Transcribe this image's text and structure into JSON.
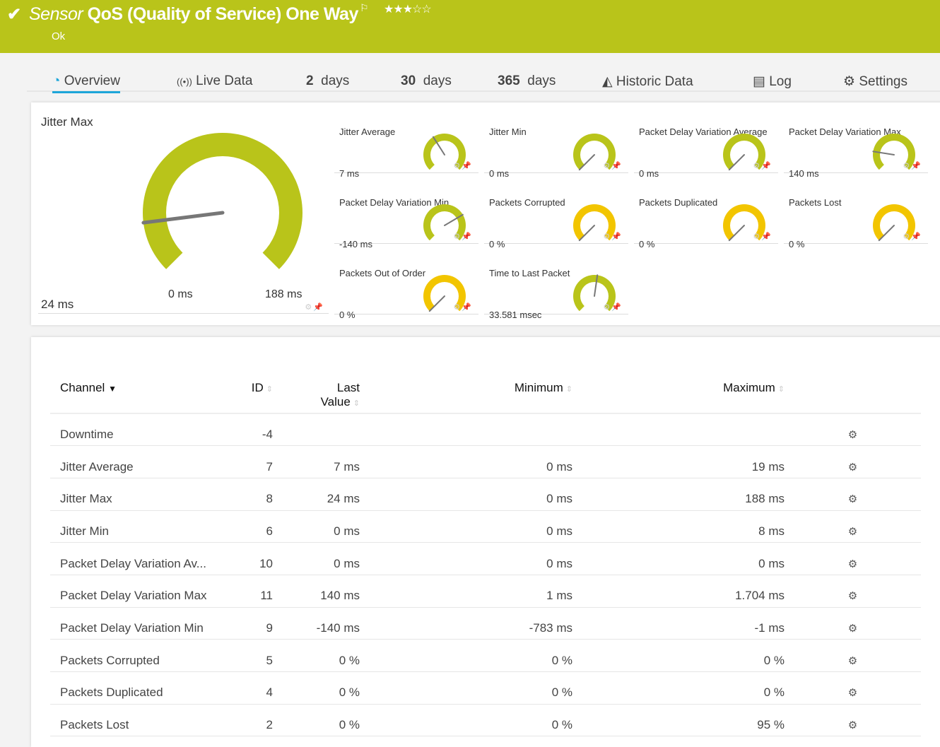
{
  "header": {
    "prefix": "Sensor",
    "title": "QoS (Quality of Service) One Way",
    "status": "Ok",
    "rating": 3,
    "rating_max": 5,
    "color": "#b9c41a",
    "icons": [
      "check-icon",
      "flag-icon",
      "star-icon"
    ]
  },
  "tabs": [
    {
      "label": "Overview",
      "icon": "gauge-icon",
      "active": true
    },
    {
      "label": "Live Data",
      "icon": "broadcast-icon"
    },
    {
      "num": "2",
      "label": "days"
    },
    {
      "num": "30",
      "label": "days"
    },
    {
      "num": "365",
      "label": "days"
    },
    {
      "label": "Historic Data",
      "icon": "area-chart-icon"
    },
    {
      "label": "Log",
      "icon": "list-icon"
    },
    {
      "label": "Settings",
      "icon": "gear-icon"
    }
  ],
  "colors": {
    "green": "#b9c41a",
    "yellow": "#f2c500",
    "tab_accent": "#1ea6d9",
    "needle": "#777777"
  },
  "main_gauge": {
    "name": "Jitter Max",
    "value": "24 ms",
    "min_label": "0 ms",
    "max_label": "188 ms",
    "needle": 0.14,
    "color": "green"
  },
  "gauges": [
    {
      "name": "Jitter Average",
      "value": "7 ms",
      "needle": 0.38,
      "color": "green"
    },
    {
      "name": "Jitter Min",
      "value": "0 ms",
      "needle": 0.0,
      "color": "green"
    },
    {
      "name": "Packet Delay Variation Average",
      "value": "0 ms",
      "needle": 0.0,
      "color": "green"
    },
    {
      "name": "Packet Delay Variation Max",
      "value": "140 ms",
      "needle": 0.2,
      "color": "green"
    },
    {
      "name": "Packet Delay Variation Min",
      "value": "-140 ms",
      "needle": 0.72,
      "color": "green"
    },
    {
      "name": "Packets Corrupted",
      "value": "0 %",
      "needle": 0.0,
      "color": "yellow"
    },
    {
      "name": "Packets Duplicated",
      "value": "0 %",
      "needle": 0.0,
      "color": "yellow"
    },
    {
      "name": "Packets Lost",
      "value": "0 %",
      "needle": 0.0,
      "color": "yellow"
    },
    {
      "name": "Packets Out of Order",
      "value": "0 %",
      "needle": 0.0,
      "color": "yellow"
    },
    {
      "name": "Time to Last Packet",
      "value": "33.581 msec",
      "needle": 0.53,
      "color": "green"
    }
  ],
  "table": {
    "headers": {
      "channel": "Channel",
      "id": "ID",
      "last1": "Last",
      "last2": "Value",
      "min": "Minimum",
      "max": "Maximum"
    },
    "rows": [
      {
        "channel": "Downtime",
        "id": "-4",
        "last": "",
        "min": "",
        "max": ""
      },
      {
        "channel": "Jitter Average",
        "id": "7",
        "last": "7 ms",
        "min": "0 ms",
        "max": "19 ms"
      },
      {
        "channel": "Jitter Max",
        "id": "8",
        "last": "24 ms",
        "min": "0 ms",
        "max": "188 ms"
      },
      {
        "channel": "Jitter Min",
        "id": "6",
        "last": "0 ms",
        "min": "0 ms",
        "max": "8 ms"
      },
      {
        "channel": "Packet Delay Variation Av...",
        "id": "10",
        "last": "0 ms",
        "min": "0 ms",
        "max": "0 ms"
      },
      {
        "channel": "Packet Delay Variation Max",
        "id": "11",
        "last": "140 ms",
        "min": "1 ms",
        "max": "1.704 ms"
      },
      {
        "channel": "Packet Delay Variation Min",
        "id": "9",
        "last": "-140 ms",
        "min": "-783 ms",
        "max": "-1 ms"
      },
      {
        "channel": "Packets Corrupted",
        "id": "5",
        "last": "0 %",
        "min": "0 %",
        "max": "0 %"
      },
      {
        "channel": "Packets Duplicated",
        "id": "4",
        "last": "0 %",
        "min": "0 %",
        "max": "0 %"
      },
      {
        "channel": "Packets Lost",
        "id": "2",
        "last": "0 %",
        "min": "0 %",
        "max": "95 %"
      }
    ]
  }
}
